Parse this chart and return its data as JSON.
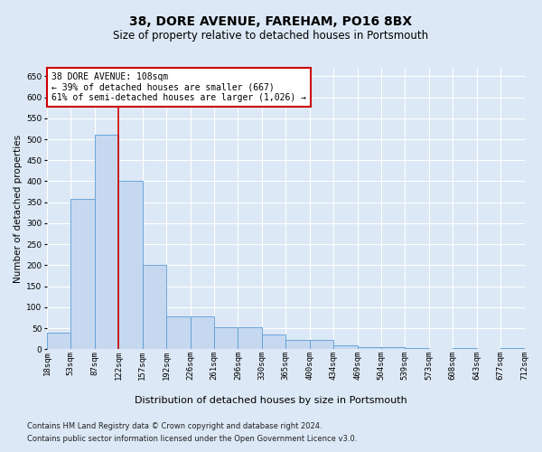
{
  "title": "38, DORE AVENUE, FAREHAM, PO16 8BX",
  "subtitle": "Size of property relative to detached houses in Portsmouth",
  "xlabel": "Distribution of detached houses by size in Portsmouth",
  "ylabel": "Number of detached properties",
  "bar_values": [
    40,
    358,
    510,
    400,
    200,
    78,
    78,
    53,
    53,
    35,
    22,
    22,
    9,
    5,
    5,
    2,
    0,
    2,
    0,
    2
  ],
  "bar_labels": [
    "18sqm",
    "53sqm",
    "87sqm",
    "122sqm",
    "157sqm",
    "192sqm",
    "226sqm",
    "261sqm",
    "296sqm",
    "330sqm",
    "365sqm",
    "400sqm",
    "434sqm",
    "469sqm",
    "504sqm",
    "539sqm",
    "573sqm",
    "608sqm",
    "643sqm",
    "677sqm",
    "712sqm"
  ],
  "bar_color": "#c5d8f0",
  "bar_edge_color": "#5b9bd5",
  "fig_background_color": "#dce8f5",
  "ax_background_color": "#dce8f5",
  "grid_color": "#ffffff",
  "annotation_text": "38 DORE AVENUE: 108sqm\n← 39% of detached houses are smaller (667)\n61% of semi-detached houses are larger (1,026) →",
  "annotation_box_color": "#ffffff",
  "annotation_box_edge_color": "#cc0000",
  "vline_x": 2.5,
  "vline_color": "#cc0000",
  "ylim": [
    0,
    670
  ],
  "yticks": [
    0,
    50,
    100,
    150,
    200,
    250,
    300,
    350,
    400,
    450,
    500,
    550,
    600,
    650
  ],
  "footer_line1": "Contains HM Land Registry data © Crown copyright and database right 2024.",
  "footer_line2": "Contains public sector information licensed under the Open Government Licence v3.0.",
  "title_fontsize": 10,
  "subtitle_fontsize": 8.5,
  "xlabel_fontsize": 8,
  "ylabel_fontsize": 7.5,
  "tick_fontsize": 6.5,
  "annotation_fontsize": 7,
  "footer_fontsize": 6
}
